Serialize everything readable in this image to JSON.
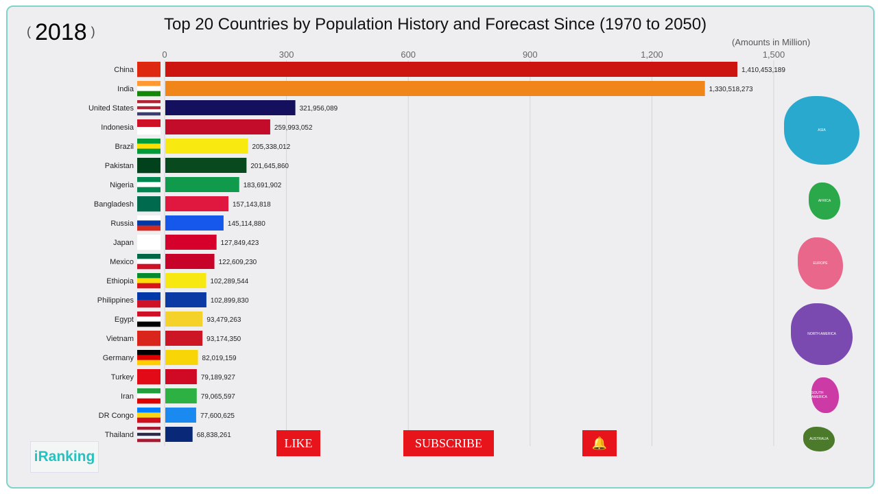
{
  "year": "2018",
  "title": "Top 20 Countries by Population History and Forecast Since (1970 to 2050)",
  "units": "(Amounts in Million)",
  "buttons": {
    "like": "LIKE",
    "subscribe": "SUBSCRIBE",
    "bell": "bell-icon"
  },
  "logo": "iRanking",
  "continents": [
    "ASIA",
    "AFRICA",
    "EUROPE",
    "NORTH AMERICA",
    "SOUTH AMERICA",
    "AUSTRALIA"
  ],
  "continent_colors": [
    "#2aa9cf",
    "#2aa84a",
    "#e8678b",
    "#7a4ab0",
    "#cc3aa6",
    "#4a7a2a"
  ],
  "chart_data": {
    "type": "bar",
    "orientation": "horizontal",
    "title": "Top 20 Countries by Population History and Forecast Since (1970 to 2050)",
    "xlabel": "(Amounts in Million)",
    "xlim": [
      0,
      1500
    ],
    "xticks": [
      0,
      300,
      600,
      900,
      1200,
      1500
    ],
    "xtick_labels": [
      "0",
      "300",
      "600",
      "900",
      "1,200",
      "1,500"
    ],
    "grid": true,
    "categories": [
      "China",
      "India",
      "United States",
      "Indonesia",
      "Brazil",
      "Pakistan",
      "Nigeria",
      "Bangladesh",
      "Russia",
      "Japan",
      "Mexico",
      "Ethiopia",
      "Philippines",
      "Egypt",
      "Vietnam",
      "Germany",
      "Turkey",
      "Iran",
      "DR Congo",
      "Thailand"
    ],
    "values": [
      1410453189,
      1330518273,
      321956089,
      259993052,
      205338012,
      201645860,
      183691902,
      157143818,
      145114880,
      127849423,
      122609230,
      102289544,
      102899830,
      93479263,
      93174350,
      82019159,
      79189927,
      79065597,
      77600625,
      68838261
    ],
    "value_labels": [
      "1,410,453,189",
      "1,330,518,273",
      "321,956,089",
      "259,993,052",
      "205,338,012",
      "201,645,860",
      "183,691,902",
      "157,143,818",
      "145,114,880",
      "127,849,423",
      "122,609,230",
      "102,289,544",
      "102,899,830",
      "93,479,263",
      "93,174,350",
      "82,019,159",
      "79,189,927",
      "79,065,597",
      "77,600,625",
      "68,838,261"
    ],
    "colors": [
      "#cc1510",
      "#f08519",
      "#15105e",
      "#c20c2a",
      "#f8ea10",
      "#08491e",
      "#0f9a4c",
      "#e0183f",
      "#1658ec",
      "#d5002c",
      "#c8032a",
      "#f8e811",
      "#0c3aa4",
      "#f4d22a",
      "#cc1525",
      "#f7d507",
      "#d00a24",
      "#2eb143",
      "#1a8af0",
      "#0a2878"
    ],
    "flags": [
      [
        "#de2910"
      ],
      [
        "#ff9933",
        "#ffffff",
        "#138808"
      ],
      [
        "#b22234",
        "#ffffff",
        "#b22234",
        "#ffffff",
        "#3c3b6e"
      ],
      [
        "#ce1126",
        "#ffffff"
      ],
      [
        "#009c3b",
        "#ffdf00",
        "#009c3b"
      ],
      [
        "#01411c"
      ],
      [
        "#008751",
        "#ffffff",
        "#008751"
      ],
      [
        "#006a4e"
      ],
      [
        "#ffffff",
        "#0039a6",
        "#d52b1e"
      ],
      [
        "#ffffff"
      ],
      [
        "#006847",
        "#ffffff",
        "#ce1126"
      ],
      [
        "#078930",
        "#fcdd09",
        "#da121a"
      ],
      [
        "#0038a8",
        "#ce1126"
      ],
      [
        "#ce1126",
        "#ffffff",
        "#000000"
      ],
      [
        "#da251d"
      ],
      [
        "#000000",
        "#dd0000",
        "#ffce00"
      ],
      [
        "#e30a17"
      ],
      [
        "#239f40",
        "#ffffff",
        "#da0000"
      ],
      [
        "#007fff",
        "#f7d618",
        "#ce1021"
      ],
      [
        "#a51931",
        "#f4f5f8",
        "#2d2a4a",
        "#f4f5f8",
        "#a51931"
      ]
    ]
  }
}
